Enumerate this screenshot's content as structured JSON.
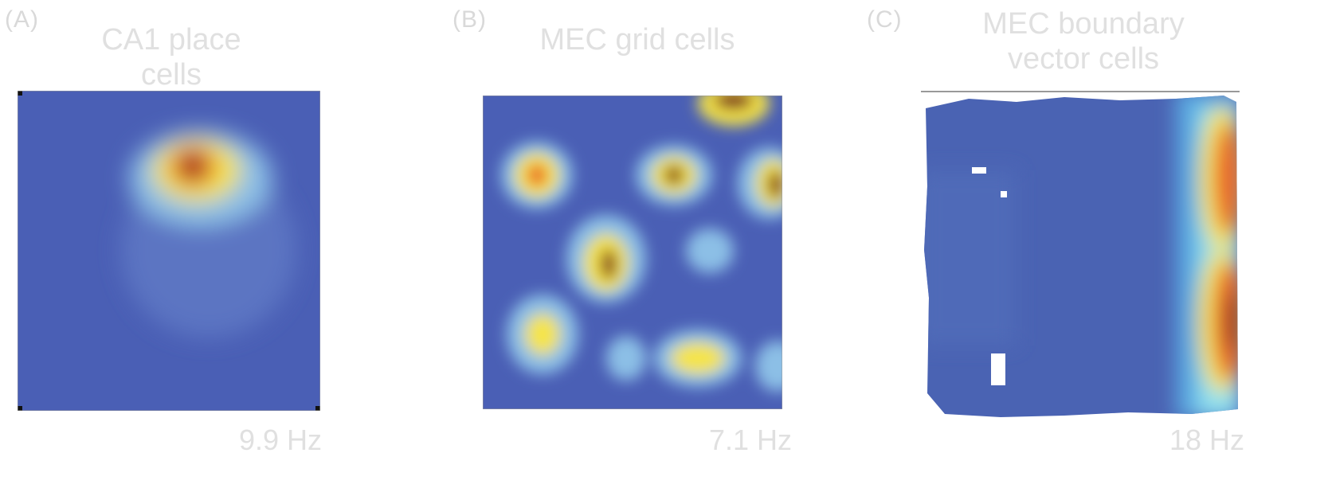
{
  "panels": [
    {
      "letter": "(A)",
      "title": "CA1 place cells",
      "rate": "9.9 Hz",
      "cell_type": "place"
    },
    {
      "letter": "(B)",
      "title": "MEC grid cells",
      "rate": "7.1 Hz",
      "cell_type": "grid"
    },
    {
      "letter": "(C)",
      "title": "MEC boundary vector cells",
      "rate": "18 Hz",
      "cell_type": "boundary"
    }
  ],
  "colors": {
    "background_map": "#4a5fb5",
    "peak": "#7a1a1a",
    "high": "#e8522a",
    "mid": "#f5e44a",
    "low": "#9fd4ee"
  }
}
